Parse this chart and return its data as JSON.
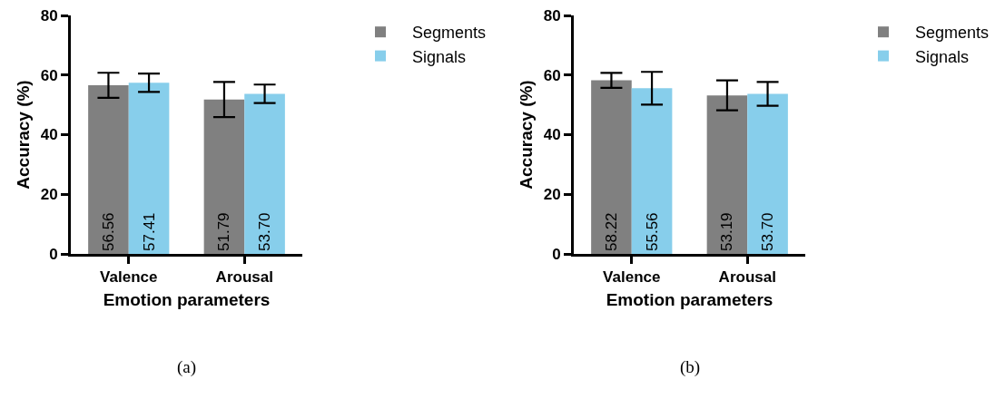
{
  "chart_data": [
    {
      "type": "bar",
      "xlabel": "Emotion parameters",
      "ylabel": "Accuracy (%)",
      "categories": [
        "Valence",
        "Arousal"
      ],
      "series": [
        {
          "name": "Segments",
          "color": "#808080",
          "values": [
            56.56,
            51.79
          ],
          "errors": [
            4.2,
            5.9
          ],
          "value_labels": [
            "56.56",
            "51.79"
          ]
        },
        {
          "name": "Signals",
          "color": "#87ceeb",
          "values": [
            57.41,
            53.7
          ],
          "errors": [
            3.1,
            3.1
          ],
          "value_labels": [
            "57.41",
            "53.70"
          ]
        }
      ],
      "ylim": [
        0,
        80
      ],
      "yticks": [
        0,
        20,
        40,
        60,
        80
      ],
      "grid": false,
      "legend": "top right",
      "annotations": [
        "(a)"
      ]
    },
    {
      "type": "bar",
      "xlabel": "Emotion parameters",
      "ylabel": "Accuracy (%)",
      "categories": [
        "Valence",
        "Arousal"
      ],
      "series": [
        {
          "name": "Segments",
          "color": "#808080",
          "values": [
            58.22,
            53.19
          ],
          "errors": [
            2.5,
            5.0
          ],
          "value_labels": [
            "58.22",
            "53.19"
          ]
        },
        {
          "name": "Signals",
          "color": "#87ceeb",
          "values": [
            55.56,
            53.7
          ],
          "errors": [
            5.5,
            4.0
          ],
          "value_labels": [
            "55.56",
            "53.70"
          ]
        }
      ],
      "ylim": [
        0,
        80
      ],
      "yticks": [
        0,
        20,
        40,
        60,
        80
      ],
      "grid": false,
      "legend": "top right",
      "annotations": [
        "(b)"
      ]
    }
  ]
}
